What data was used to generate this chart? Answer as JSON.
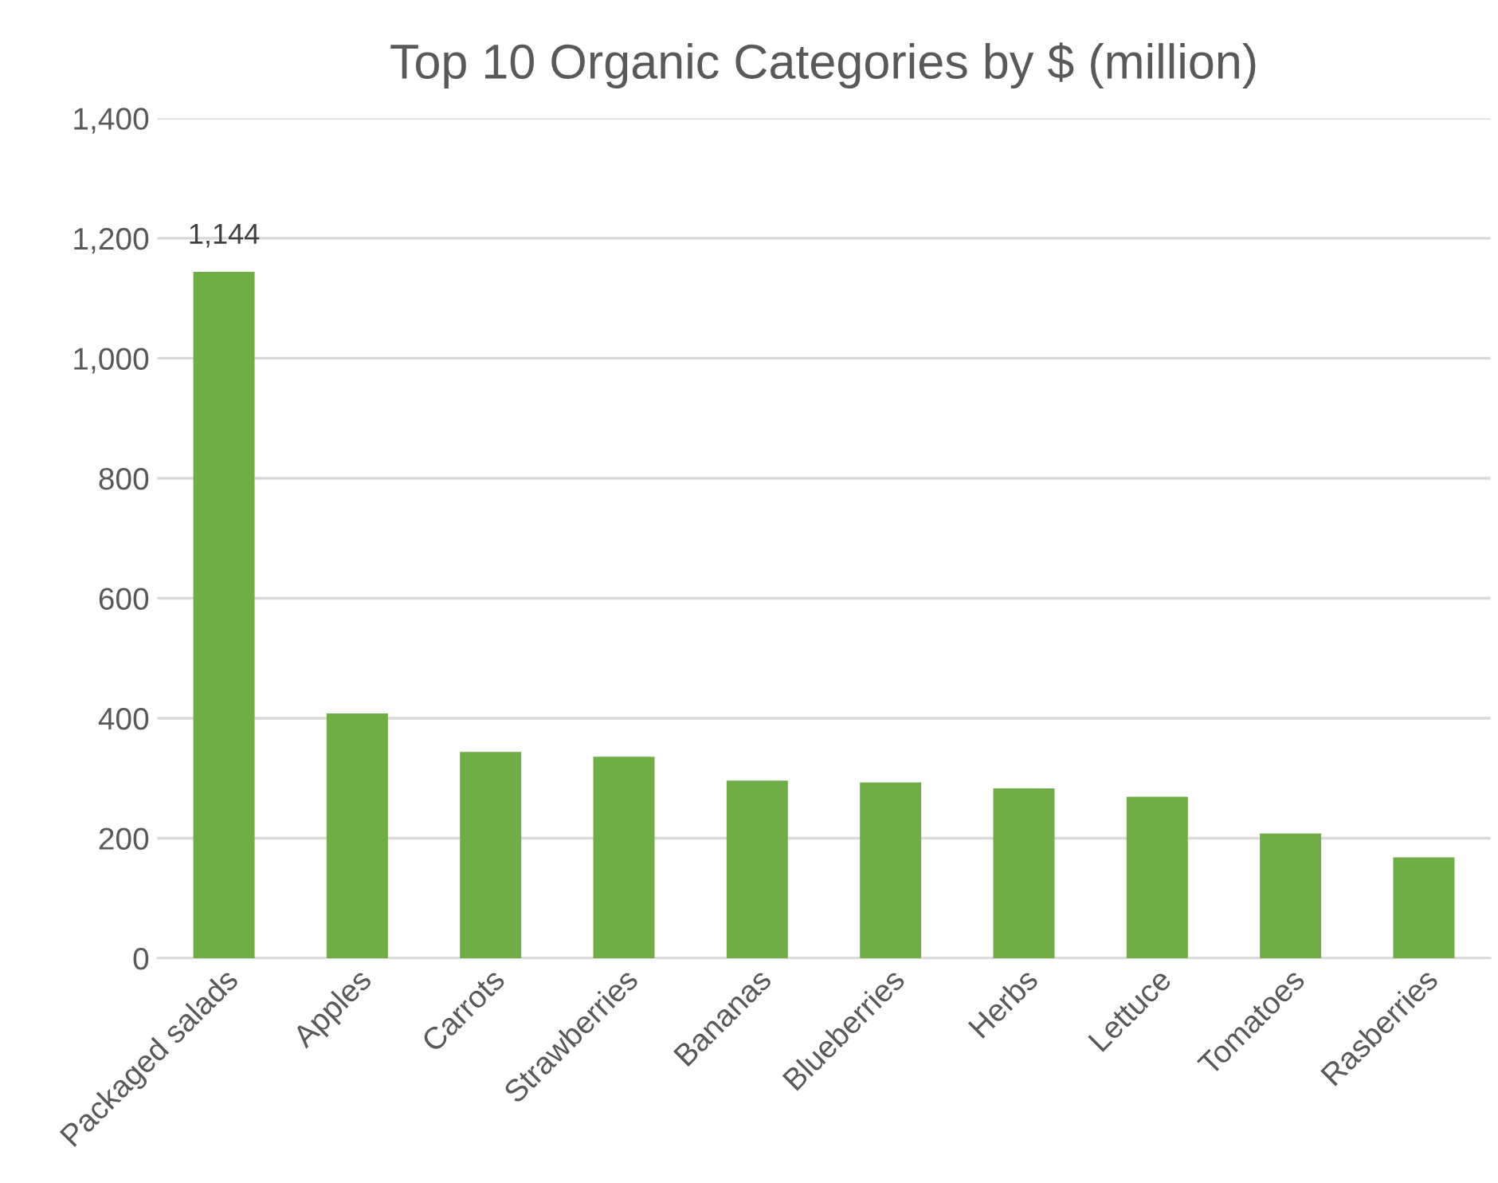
{
  "chart_data": {
    "type": "bar",
    "title": "Top 10 Organic Categories by $ (million)",
    "categories": [
      "Packaged salads",
      "Apples",
      "Carrots",
      "Strawberries",
      "Bananas",
      "Blueberries",
      "Herbs",
      "Lettuce",
      "Tomatoes",
      "Rasberries"
    ],
    "values": [
      1144,
      408,
      344,
      336,
      296,
      293,
      283,
      269,
      208,
      168
    ],
    "value_labels": [
      "1,144",
      null,
      null,
      null,
      null,
      null,
      null,
      null,
      null,
      null
    ],
    "color": "#70ad47",
    "ylim": [
      0,
      1400
    ],
    "yticks": [
      {
        "value": 0,
        "label": "0"
      },
      {
        "value": 200,
        "label": "200"
      },
      {
        "value": 400,
        "label": "400"
      },
      {
        "value": 600,
        "label": "600"
      },
      {
        "value": 800,
        "label": "800"
      },
      {
        "value": 1000,
        "label": "1,000"
      },
      {
        "value": 1200,
        "label": "1,200"
      },
      {
        "value": 1400,
        "label": "1,400"
      }
    ],
    "grid": "y"
  }
}
